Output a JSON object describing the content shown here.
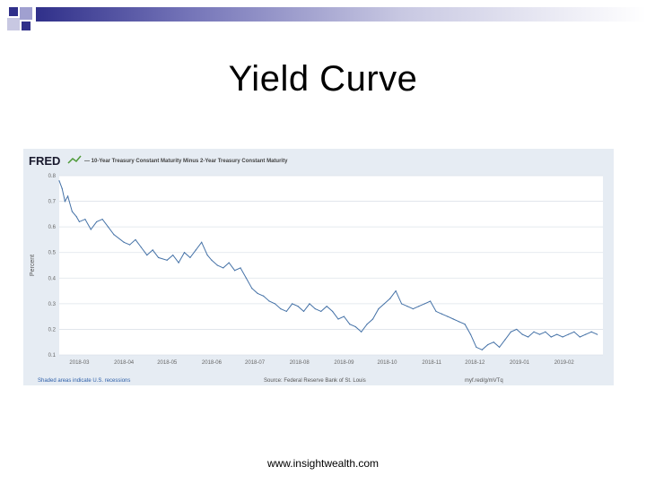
{
  "slide": {
    "title": "Yield Curve",
    "footer": "www.insightwealth.com"
  },
  "colors": {
    "accent_dark": "#30308a",
    "accent_mid": "#7474b8",
    "line": "#4572a7",
    "panel_bg": "#e6ecf3"
  },
  "fred": {
    "logo": "FRED",
    "series_title": "— 10-Year Treasury Constant Maturity Minus 2-Year Treasury Constant Maturity",
    "y_label": "Percent",
    "recessions_note": "Shaded areas indicate U.S. recessions",
    "source": "Source: Federal Reserve Bank of St. Louis",
    "link": "myf.red/g/mVTq"
  },
  "chart_data": {
    "type": "line",
    "title": "10-Year Treasury Constant Maturity Minus 2-Year Treasury Constant Maturity",
    "ylabel": "Percent",
    "xlabel": "",
    "ylim": [
      0.1,
      0.8
    ],
    "yticks": [
      "0.1",
      "0.2",
      "0.3",
      "0.4",
      "0.5",
      "0.6",
      "0.7",
      "0.8"
    ],
    "xticks": [
      "2018-03",
      "2018-04",
      "2018-05",
      "2018-06",
      "2018-07",
      "2018-08",
      "2018-09",
      "2018-10",
      "2018-11",
      "2018-12",
      "2019-01",
      "2019-02"
    ],
    "grid": true,
    "legend": "none",
    "series": [
      {
        "x": [
          "2018-02-15",
          "2018-02-17",
          "2018-02-19",
          "2018-02-21",
          "2018-02-24",
          "2018-02-27",
          "2018-03-01",
          "2018-03-05",
          "2018-03-09",
          "2018-03-13",
          "2018-03-17",
          "2018-03-21",
          "2018-03-25",
          "2018-04-01",
          "2018-04-05",
          "2018-04-09",
          "2018-04-13",
          "2018-04-17",
          "2018-04-21",
          "2018-04-25",
          "2018-05-01",
          "2018-05-05",
          "2018-05-09",
          "2018-05-13",
          "2018-05-17",
          "2018-05-21",
          "2018-05-25",
          "2018-05-29",
          "2018-06-01",
          "2018-06-05",
          "2018-06-09",
          "2018-06-13",
          "2018-06-17",
          "2018-06-21",
          "2018-06-25",
          "2018-06-29",
          "2018-07-03",
          "2018-07-07",
          "2018-07-11",
          "2018-07-15",
          "2018-07-19",
          "2018-07-23",
          "2018-07-27",
          "2018-07-31",
          "2018-08-04",
          "2018-08-08",
          "2018-08-12",
          "2018-08-16",
          "2018-08-20",
          "2018-08-24",
          "2018-08-28",
          "2018-09-01",
          "2018-09-05",
          "2018-09-09",
          "2018-09-13",
          "2018-09-17",
          "2018-09-21",
          "2018-09-25",
          "2018-09-29",
          "2018-10-03",
          "2018-10-07",
          "2018-10-11",
          "2018-10-15",
          "2018-10-19",
          "2018-10-23",
          "2018-10-27",
          "2018-10-31",
          "2018-11-04",
          "2018-11-08",
          "2018-11-12",
          "2018-11-16",
          "2018-11-20",
          "2018-11-24",
          "2018-11-28",
          "2018-12-02",
          "2018-12-06",
          "2018-12-10",
          "2018-12-14",
          "2018-12-18",
          "2018-12-22",
          "2018-12-26",
          "2018-12-30",
          "2019-01-03",
          "2019-01-07",
          "2019-01-11",
          "2019-01-15",
          "2019-01-19",
          "2019-01-23",
          "2019-01-27",
          "2019-01-31",
          "2019-02-04",
          "2019-02-08",
          "2019-02-12",
          "2019-02-16",
          "2019-02-20",
          "2019-02-24"
        ],
        "values": [
          0.78,
          0.75,
          0.7,
          0.72,
          0.66,
          0.64,
          0.62,
          0.63,
          0.59,
          0.62,
          0.63,
          0.6,
          0.57,
          0.54,
          0.53,
          0.55,
          0.52,
          0.49,
          0.51,
          0.48,
          0.47,
          0.49,
          0.46,
          0.5,
          0.48,
          0.51,
          0.54,
          0.49,
          0.47,
          0.45,
          0.44,
          0.46,
          0.43,
          0.44,
          0.4,
          0.36,
          0.34,
          0.33,
          0.31,
          0.3,
          0.28,
          0.27,
          0.3,
          0.29,
          0.27,
          0.3,
          0.28,
          0.27,
          0.29,
          0.27,
          0.24,
          0.25,
          0.22,
          0.21,
          0.19,
          0.22,
          0.24,
          0.28,
          0.3,
          0.32,
          0.35,
          0.3,
          0.29,
          0.28,
          0.29,
          0.3,
          0.31,
          0.27,
          0.26,
          0.25,
          0.24,
          0.23,
          0.22,
          0.18,
          0.13,
          0.12,
          0.14,
          0.15,
          0.13,
          0.16,
          0.19,
          0.2,
          0.18,
          0.17,
          0.19,
          0.18,
          0.19,
          0.17,
          0.18,
          0.17,
          0.18,
          0.19,
          0.17,
          0.18,
          0.19,
          0.18
        ]
      }
    ]
  }
}
